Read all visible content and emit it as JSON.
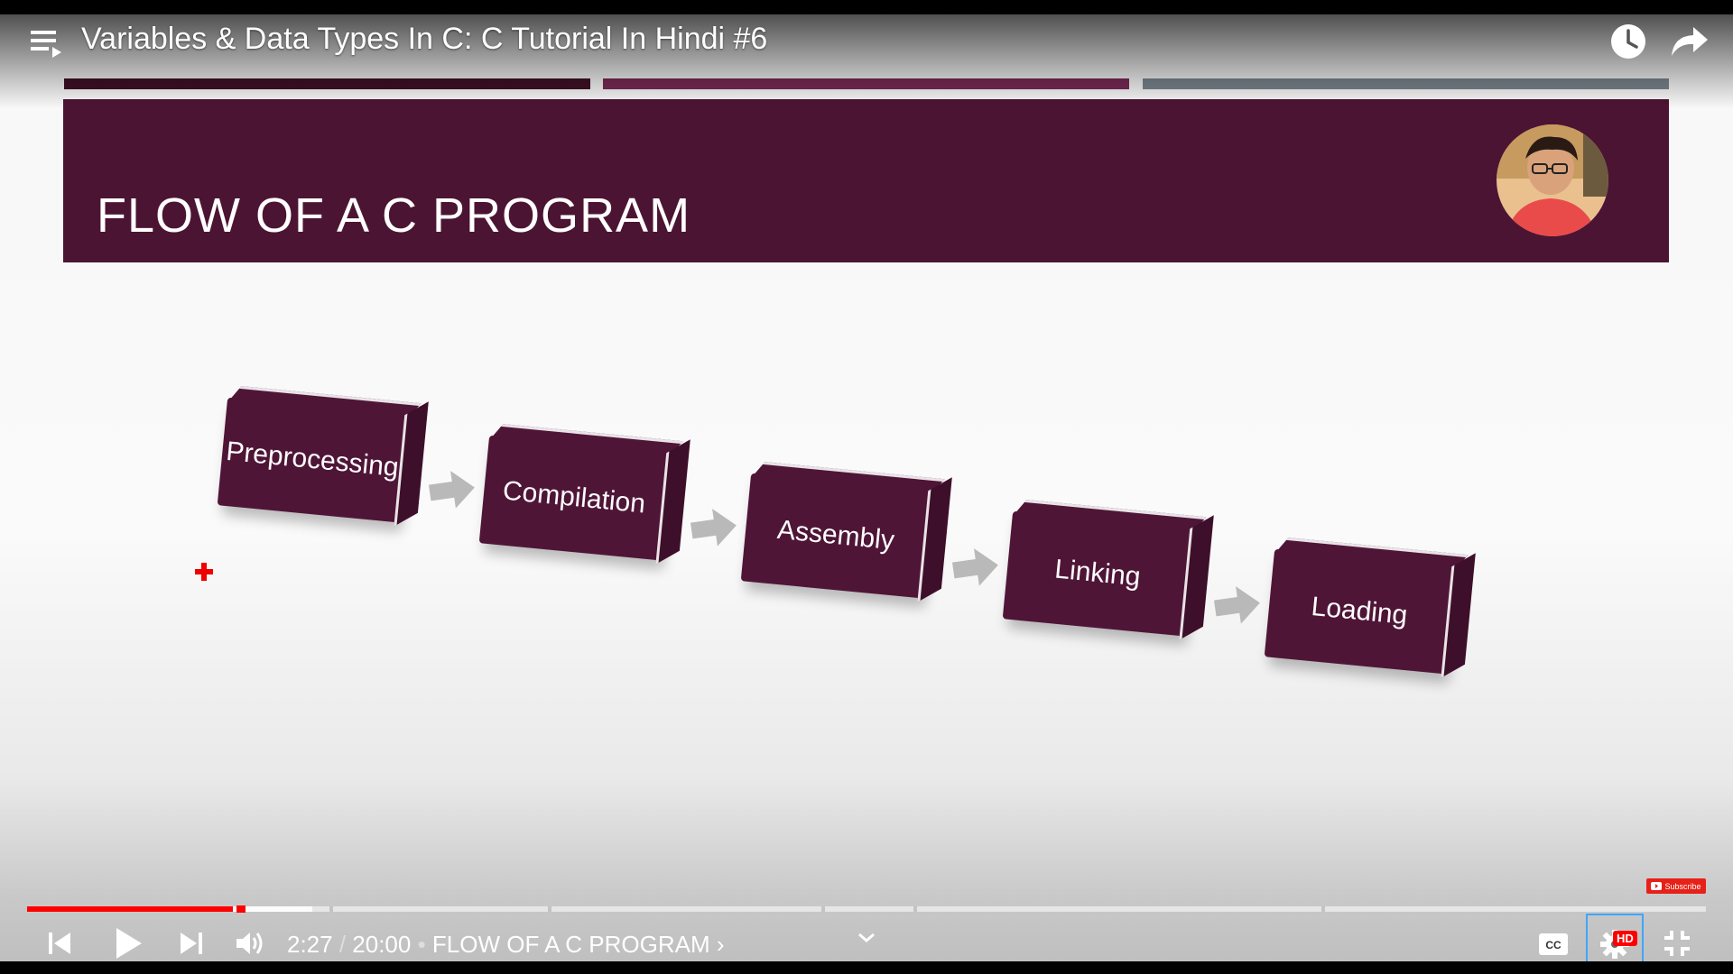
{
  "header": {
    "video_title": "Variables & Data Types In C: C Tutorial In Hindi #6"
  },
  "slide": {
    "title": "FLOW OF A C PROGRAM",
    "steps": [
      {
        "label": "Preprocessing"
      },
      {
        "label": "Compilation"
      },
      {
        "label": "Assembly"
      },
      {
        "label": "Linking"
      },
      {
        "label": "Loading"
      }
    ],
    "colors": {
      "banner": "#4c1433",
      "box": "#4f1537",
      "stripe_dark": "#3f1026",
      "stripe_mid": "#7a2956",
      "stripe_grey": "#7b858d"
    }
  },
  "player": {
    "current_time": "2:27",
    "separator": " / ",
    "duration": "20:00",
    "chapter_separator": " • ",
    "chapter_title": "FLOW OF A C PROGRAM",
    "chapter_chevron": "›",
    "progress_played_fraction": 0.1225,
    "progress_buffered_fraction": 0.17,
    "chapter_markers_fraction": [
      0.18,
      0.31,
      0.473,
      0.528,
      0.771
    ],
    "quality_badge": "HD",
    "subscribe_label": "Subscribe",
    "accent_color": "#ff0000"
  },
  "icons": {
    "playlist": "playlist-icon",
    "watch_later": "clock-icon",
    "share": "share-icon",
    "previous": "previous-icon",
    "play": "play-icon",
    "next": "next-icon",
    "volume": "volume-icon",
    "expand_chevron": "chevron-down-icon",
    "captions": "cc-icon",
    "settings": "gear-icon",
    "exit_fullscreen": "exit-fullscreen-icon"
  }
}
